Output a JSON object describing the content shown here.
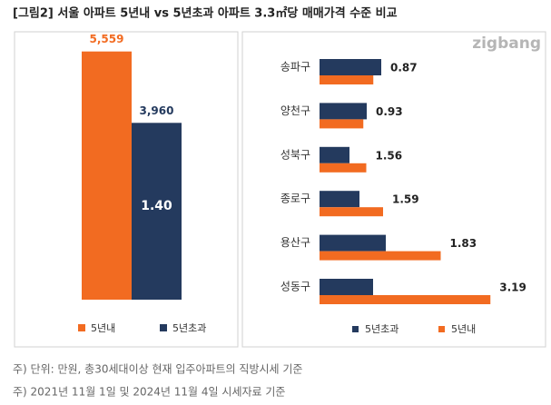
{
  "chart_data": [
    {
      "type": "bar",
      "title": "[그림2] 서울 아파트 5년내 vs 5년초과 아파트 3.3㎡당 매매가격 수준 비교",
      "logo": "zigbang",
      "categories": [
        "5년내",
        "5년초과"
      ],
      "values": [
        5559,
        3960
      ],
      "value_labels": [
        "5,559",
        "3,960"
      ],
      "colors": [
        "#f26b21",
        "#243a5e"
      ],
      "ratio": 1.4,
      "ratio_label": "1.40",
      "ylim": [
        0,
        6000
      ],
      "legend": "bottom",
      "notes": [
        "주) 단위: 만원, 총30세대이상 현재 입주아파트의 직방시세 기준",
        "주) 2021년 11월 1일 및 2024년 11월 4일 시세자료 기준"
      ]
    },
    {
      "type": "hbar",
      "categories": [
        "송파구",
        "양천구",
        "성북구",
        "종로구",
        "용산구",
        "성동구"
      ],
      "series": [
        {
          "name": "5년초과",
          "color": "#243a5e",
          "values": [
            2720,
            2080,
            1320,
            1760,
            2920,
            2360
          ]
        },
        {
          "name": "5년내",
          "color": "#f26b21",
          "values": [
            2370,
            1930,
            2060,
            2800,
            5340,
            7530
          ]
        }
      ],
      "ratios": [
        0.87,
        0.93,
        1.56,
        1.59,
        1.83,
        3.19
      ],
      "xlim": [
        0,
        8000
      ],
      "legend": "bottom"
    }
  ]
}
